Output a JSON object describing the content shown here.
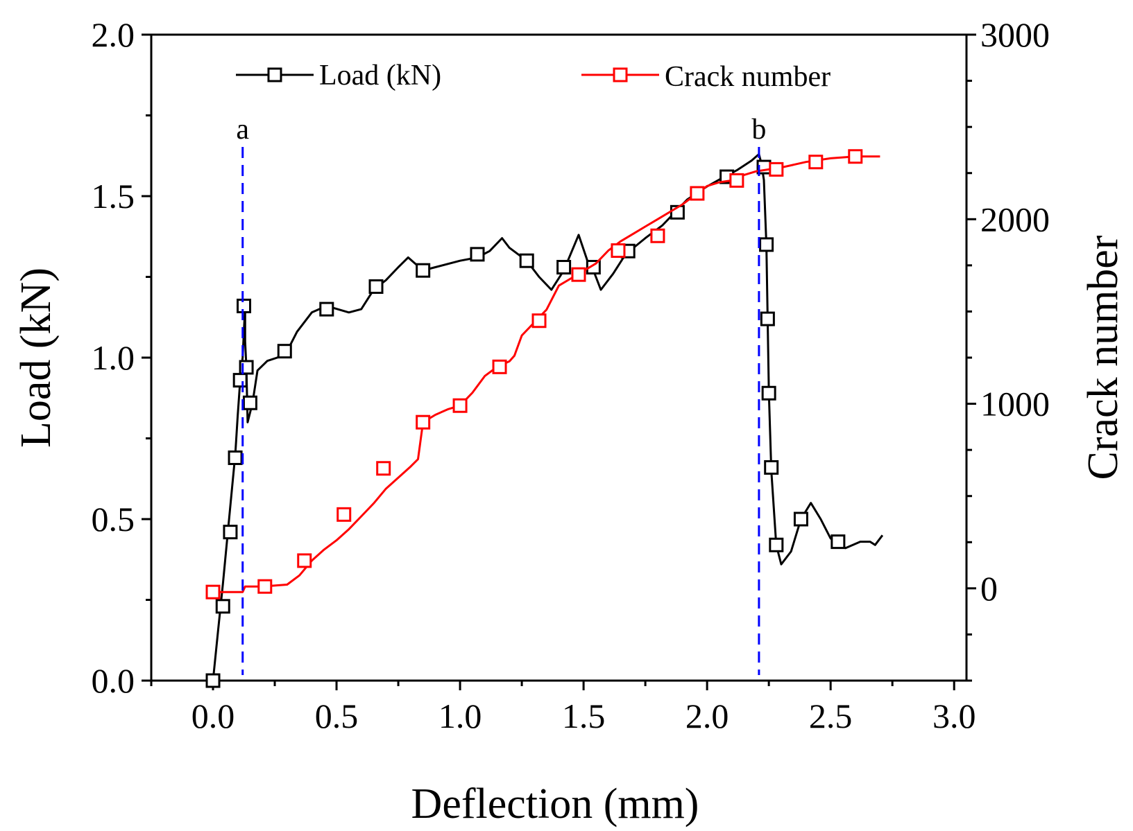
{
  "chart_data": {
    "type": "line",
    "x_label": "Deflection (mm)",
    "y_label": "Load (kN)",
    "y2_label": "Crack number",
    "xlim": [
      -0.25,
      3.05
    ],
    "ylim": [
      0,
      2.0
    ],
    "y2lim": [
      -500,
      3000
    ],
    "x_ticks": [
      "0.0",
      "0.5",
      "1.0",
      "1.5",
      "2.0",
      "2.5",
      "3.0"
    ],
    "x_tick_values": [
      0,
      0.5,
      1.0,
      1.5,
      2.0,
      2.5,
      3.0
    ],
    "y_ticks": [
      "0.0",
      "0.5",
      "1.0",
      "1.5",
      "2.0"
    ],
    "y_tick_values": [
      0,
      0.5,
      1.0,
      1.5,
      2.0
    ],
    "y2_ticks": [
      "0",
      "1000",
      "2000",
      "3000"
    ],
    "y2_tick_values": [
      0,
      1000,
      2000,
      3000
    ],
    "legend": {
      "load": "Load (kN)",
      "crack": "Crack number"
    },
    "markers": [
      {
        "label": "a",
        "x": 0.12
      },
      {
        "label": "b",
        "x": 2.21
      }
    ],
    "colors": {
      "load": "#000000",
      "crack": "#ff0000",
      "marker_line": "#0000ff"
    },
    "series": [
      {
        "name": "Load (kN)",
        "axis": "left",
        "line": [
          [
            0,
            0
          ],
          [
            0.02,
            0.15
          ],
          [
            0.04,
            0.3
          ],
          [
            0.06,
            0.46
          ],
          [
            0.08,
            0.62
          ],
          [
            0.09,
            0.7
          ],
          [
            0.1,
            0.82
          ],
          [
            0.11,
            0.93
          ],
          [
            0.12,
            1.0
          ],
          [
            0.13,
            1.16
          ],
          [
            0.13,
            1.05
          ],
          [
            0.135,
            0.97
          ],
          [
            0.14,
            0.8
          ],
          [
            0.16,
            0.86
          ],
          [
            0.18,
            0.96
          ],
          [
            0.22,
            0.99
          ],
          [
            0.26,
            1.0
          ],
          [
            0.3,
            1.02
          ],
          [
            0.34,
            1.08
          ],
          [
            0.4,
            1.14
          ],
          [
            0.46,
            1.16
          ],
          [
            0.55,
            1.14
          ],
          [
            0.6,
            1.15
          ],
          [
            0.65,
            1.21
          ],
          [
            0.7,
            1.24
          ],
          [
            0.75,
            1.28
          ],
          [
            0.79,
            1.31
          ],
          [
            0.85,
            1.27
          ],
          [
            0.9,
            1.28
          ],
          [
            1.0,
            1.3
          ],
          [
            1.07,
            1.31
          ],
          [
            1.12,
            1.33
          ],
          [
            1.17,
            1.37
          ],
          [
            1.2,
            1.34
          ],
          [
            1.27,
            1.3
          ],
          [
            1.32,
            1.25
          ],
          [
            1.37,
            1.21
          ],
          [
            1.42,
            1.27
          ],
          [
            1.48,
            1.38
          ],
          [
            1.52,
            1.29
          ],
          [
            1.54,
            1.27
          ],
          [
            1.57,
            1.21
          ],
          [
            1.62,
            1.26
          ],
          [
            1.67,
            1.32
          ],
          [
            1.75,
            1.37
          ],
          [
            1.82,
            1.41
          ],
          [
            1.87,
            1.45
          ],
          [
            1.92,
            1.49
          ],
          [
            2.0,
            1.53
          ],
          [
            2.07,
            1.56
          ],
          [
            2.12,
            1.58
          ],
          [
            2.18,
            1.61
          ],
          [
            2.21,
            1.63
          ],
          [
            2.22,
            1.6
          ],
          [
            2.23,
            1.55
          ],
          [
            2.24,
            1.35
          ],
          [
            2.245,
            1.12
          ],
          [
            2.25,
            0.89
          ],
          [
            2.26,
            0.65
          ],
          [
            2.28,
            0.42
          ],
          [
            2.3,
            0.36
          ],
          [
            2.34,
            0.4
          ],
          [
            2.38,
            0.5
          ],
          [
            2.42,
            0.55
          ],
          [
            2.46,
            0.5
          ],
          [
            2.5,
            0.44
          ],
          [
            2.53,
            0.43
          ],
          [
            2.56,
            0.41
          ],
          [
            2.62,
            0.43
          ],
          [
            2.66,
            0.43
          ],
          [
            2.68,
            0.42
          ],
          [
            2.71,
            0.45
          ]
        ],
        "points": [
          [
            0,
            0
          ],
          [
            0.04,
            0.23
          ],
          [
            0.07,
            0.46
          ],
          [
            0.09,
            0.69
          ],
          [
            0.11,
            0.93
          ],
          [
            0.125,
            1.16
          ],
          [
            0.135,
            0.97
          ],
          [
            0.15,
            0.86
          ],
          [
            0.29,
            1.02
          ],
          [
            0.46,
            1.15
          ],
          [
            0.66,
            1.22
          ],
          [
            0.85,
            1.27
          ],
          [
            1.07,
            1.32
          ],
          [
            1.27,
            1.3
          ],
          [
            1.42,
            1.28
          ],
          [
            1.54,
            1.28
          ],
          [
            1.68,
            1.33
          ],
          [
            1.88,
            1.45
          ],
          [
            2.08,
            1.56
          ],
          [
            2.23,
            1.59
          ],
          [
            2.24,
            1.35
          ],
          [
            2.245,
            1.12
          ],
          [
            2.25,
            0.89
          ],
          [
            2.26,
            0.66
          ],
          [
            2.28,
            0.42
          ],
          [
            2.38,
            0.5
          ],
          [
            2.53,
            0.43
          ]
        ]
      },
      {
        "name": "Crack number",
        "axis": "right",
        "line": [
          [
            0,
            -20
          ],
          [
            0.1,
            -20
          ],
          [
            0.12,
            -20
          ],
          [
            0.13,
            10
          ],
          [
            0.2,
            10
          ],
          [
            0.3,
            20
          ],
          [
            0.35,
            70
          ],
          [
            0.4,
            150
          ],
          [
            0.45,
            210
          ],
          [
            0.5,
            260
          ],
          [
            0.55,
            320
          ],
          [
            0.6,
            390
          ],
          [
            0.65,
            460
          ],
          [
            0.7,
            540
          ],
          [
            0.75,
            600
          ],
          [
            0.8,
            660
          ],
          [
            0.83,
            700
          ],
          [
            0.85,
            900
          ],
          [
            0.9,
            940
          ],
          [
            0.95,
            970
          ],
          [
            1.0,
            990
          ],
          [
            1.05,
            1060
          ],
          [
            1.1,
            1150
          ],
          [
            1.15,
            1200
          ],
          [
            1.2,
            1230
          ],
          [
            1.22,
            1260
          ],
          [
            1.25,
            1370
          ],
          [
            1.3,
            1440
          ],
          [
            1.35,
            1510
          ],
          [
            1.4,
            1640
          ],
          [
            1.45,
            1680
          ],
          [
            1.5,
            1720
          ],
          [
            1.55,
            1760
          ],
          [
            1.6,
            1830
          ],
          [
            1.65,
            1880
          ],
          [
            1.7,
            1920
          ],
          [
            1.75,
            1960
          ],
          [
            1.8,
            2000
          ],
          [
            1.9,
            2080
          ],
          [
            1.95,
            2130
          ],
          [
            2.0,
            2180
          ],
          [
            2.05,
            2200
          ],
          [
            2.1,
            2210
          ],
          [
            2.15,
            2240
          ],
          [
            2.2,
            2260
          ],
          [
            2.3,
            2280
          ],
          [
            2.4,
            2310
          ],
          [
            2.5,
            2330
          ],
          [
            2.6,
            2340
          ],
          [
            2.7,
            2340
          ]
        ],
        "points": [
          [
            0,
            -20
          ],
          [
            0.21,
            10
          ],
          [
            0.37,
            150
          ],
          [
            0.53,
            400
          ],
          [
            0.69,
            650
          ],
          [
            0.85,
            900
          ],
          [
            1.0,
            990
          ],
          [
            1.16,
            1200
          ],
          [
            1.32,
            1450
          ],
          [
            1.48,
            1700
          ],
          [
            1.64,
            1830
          ],
          [
            1.8,
            1910
          ],
          [
            1.96,
            2140
          ],
          [
            2.12,
            2210
          ],
          [
            2.28,
            2270
          ],
          [
            2.44,
            2310
          ],
          [
            2.6,
            2340
          ]
        ]
      }
    ]
  }
}
